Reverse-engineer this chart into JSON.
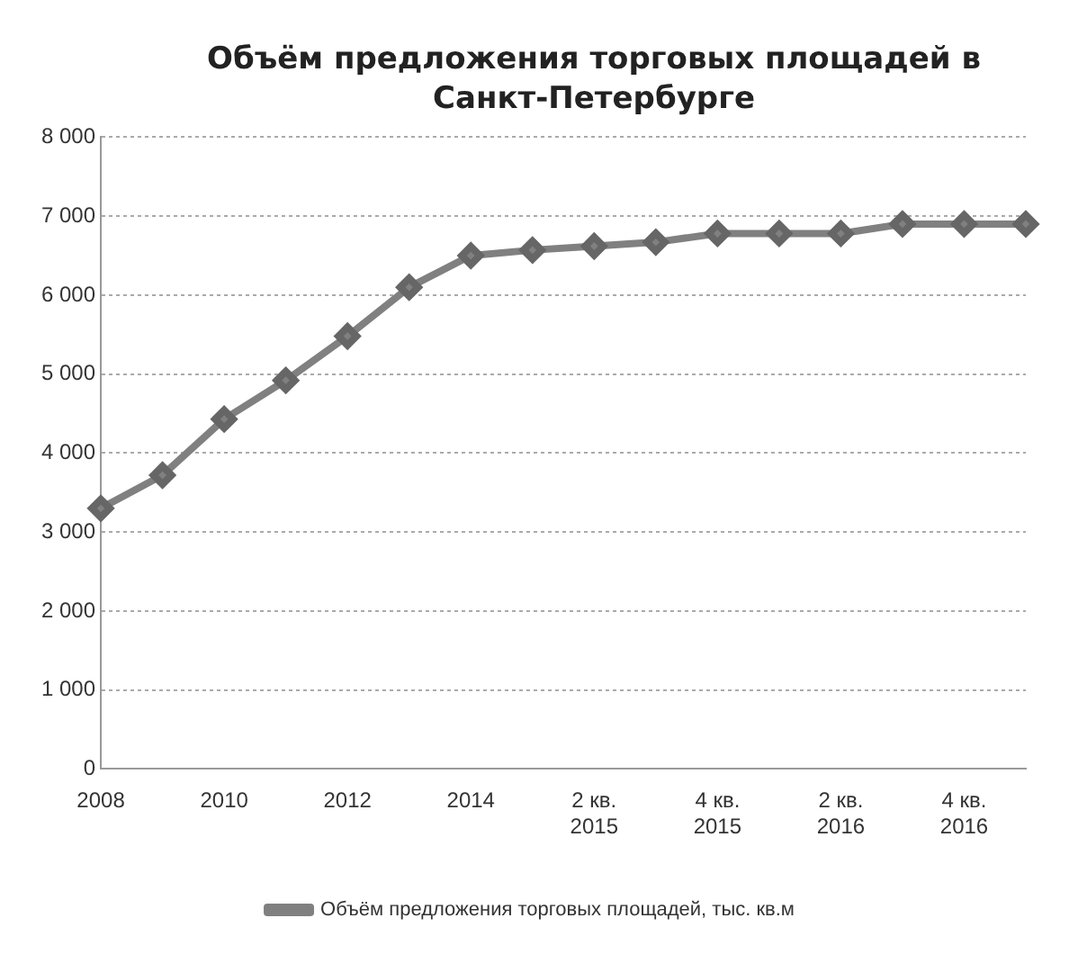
{
  "chart_data": {
    "type": "line",
    "title": "Объём предложения торговых площадей в Санкт-Петербурге",
    "categories": [
      "2008",
      null,
      "2010",
      null,
      "2012",
      null,
      "2014",
      null,
      "2 кв. 2015",
      null,
      "4 кв. 2015",
      null,
      "2 кв. 2016",
      null,
      "4 кв. 2016",
      null
    ],
    "series": [
      {
        "name": "Объём предложения торговых площадей, тыс. кв.м",
        "color": "#808080",
        "values": [
          3300,
          3720,
          4430,
          4920,
          5480,
          6100,
          6500,
          6570,
          6620,
          6670,
          6780,
          6780,
          6780,
          6900,
          6900,
          6900
        ]
      }
    ],
    "ylim": [
      0,
      8000
    ],
    "yticks": [
      0,
      {
        "value": 1000,
        "label": "1 000"
      },
      {
        "value": 2000,
        "label": "2 000"
      },
      {
        "value": 3000,
        "label": "3 000"
      },
      {
        "value": 4000,
        "label": "4 000"
      },
      {
        "value": 5000,
        "label": "5 000"
      },
      {
        "value": 6000,
        "label": "6 000"
      },
      {
        "value": 7000,
        "label": "7 000"
      },
      {
        "value": 8000,
        "label": "8 000"
      }
    ],
    "grid": "y",
    "legend": "bottom",
    "marker": "diamond",
    "line_style": "solid"
  }
}
